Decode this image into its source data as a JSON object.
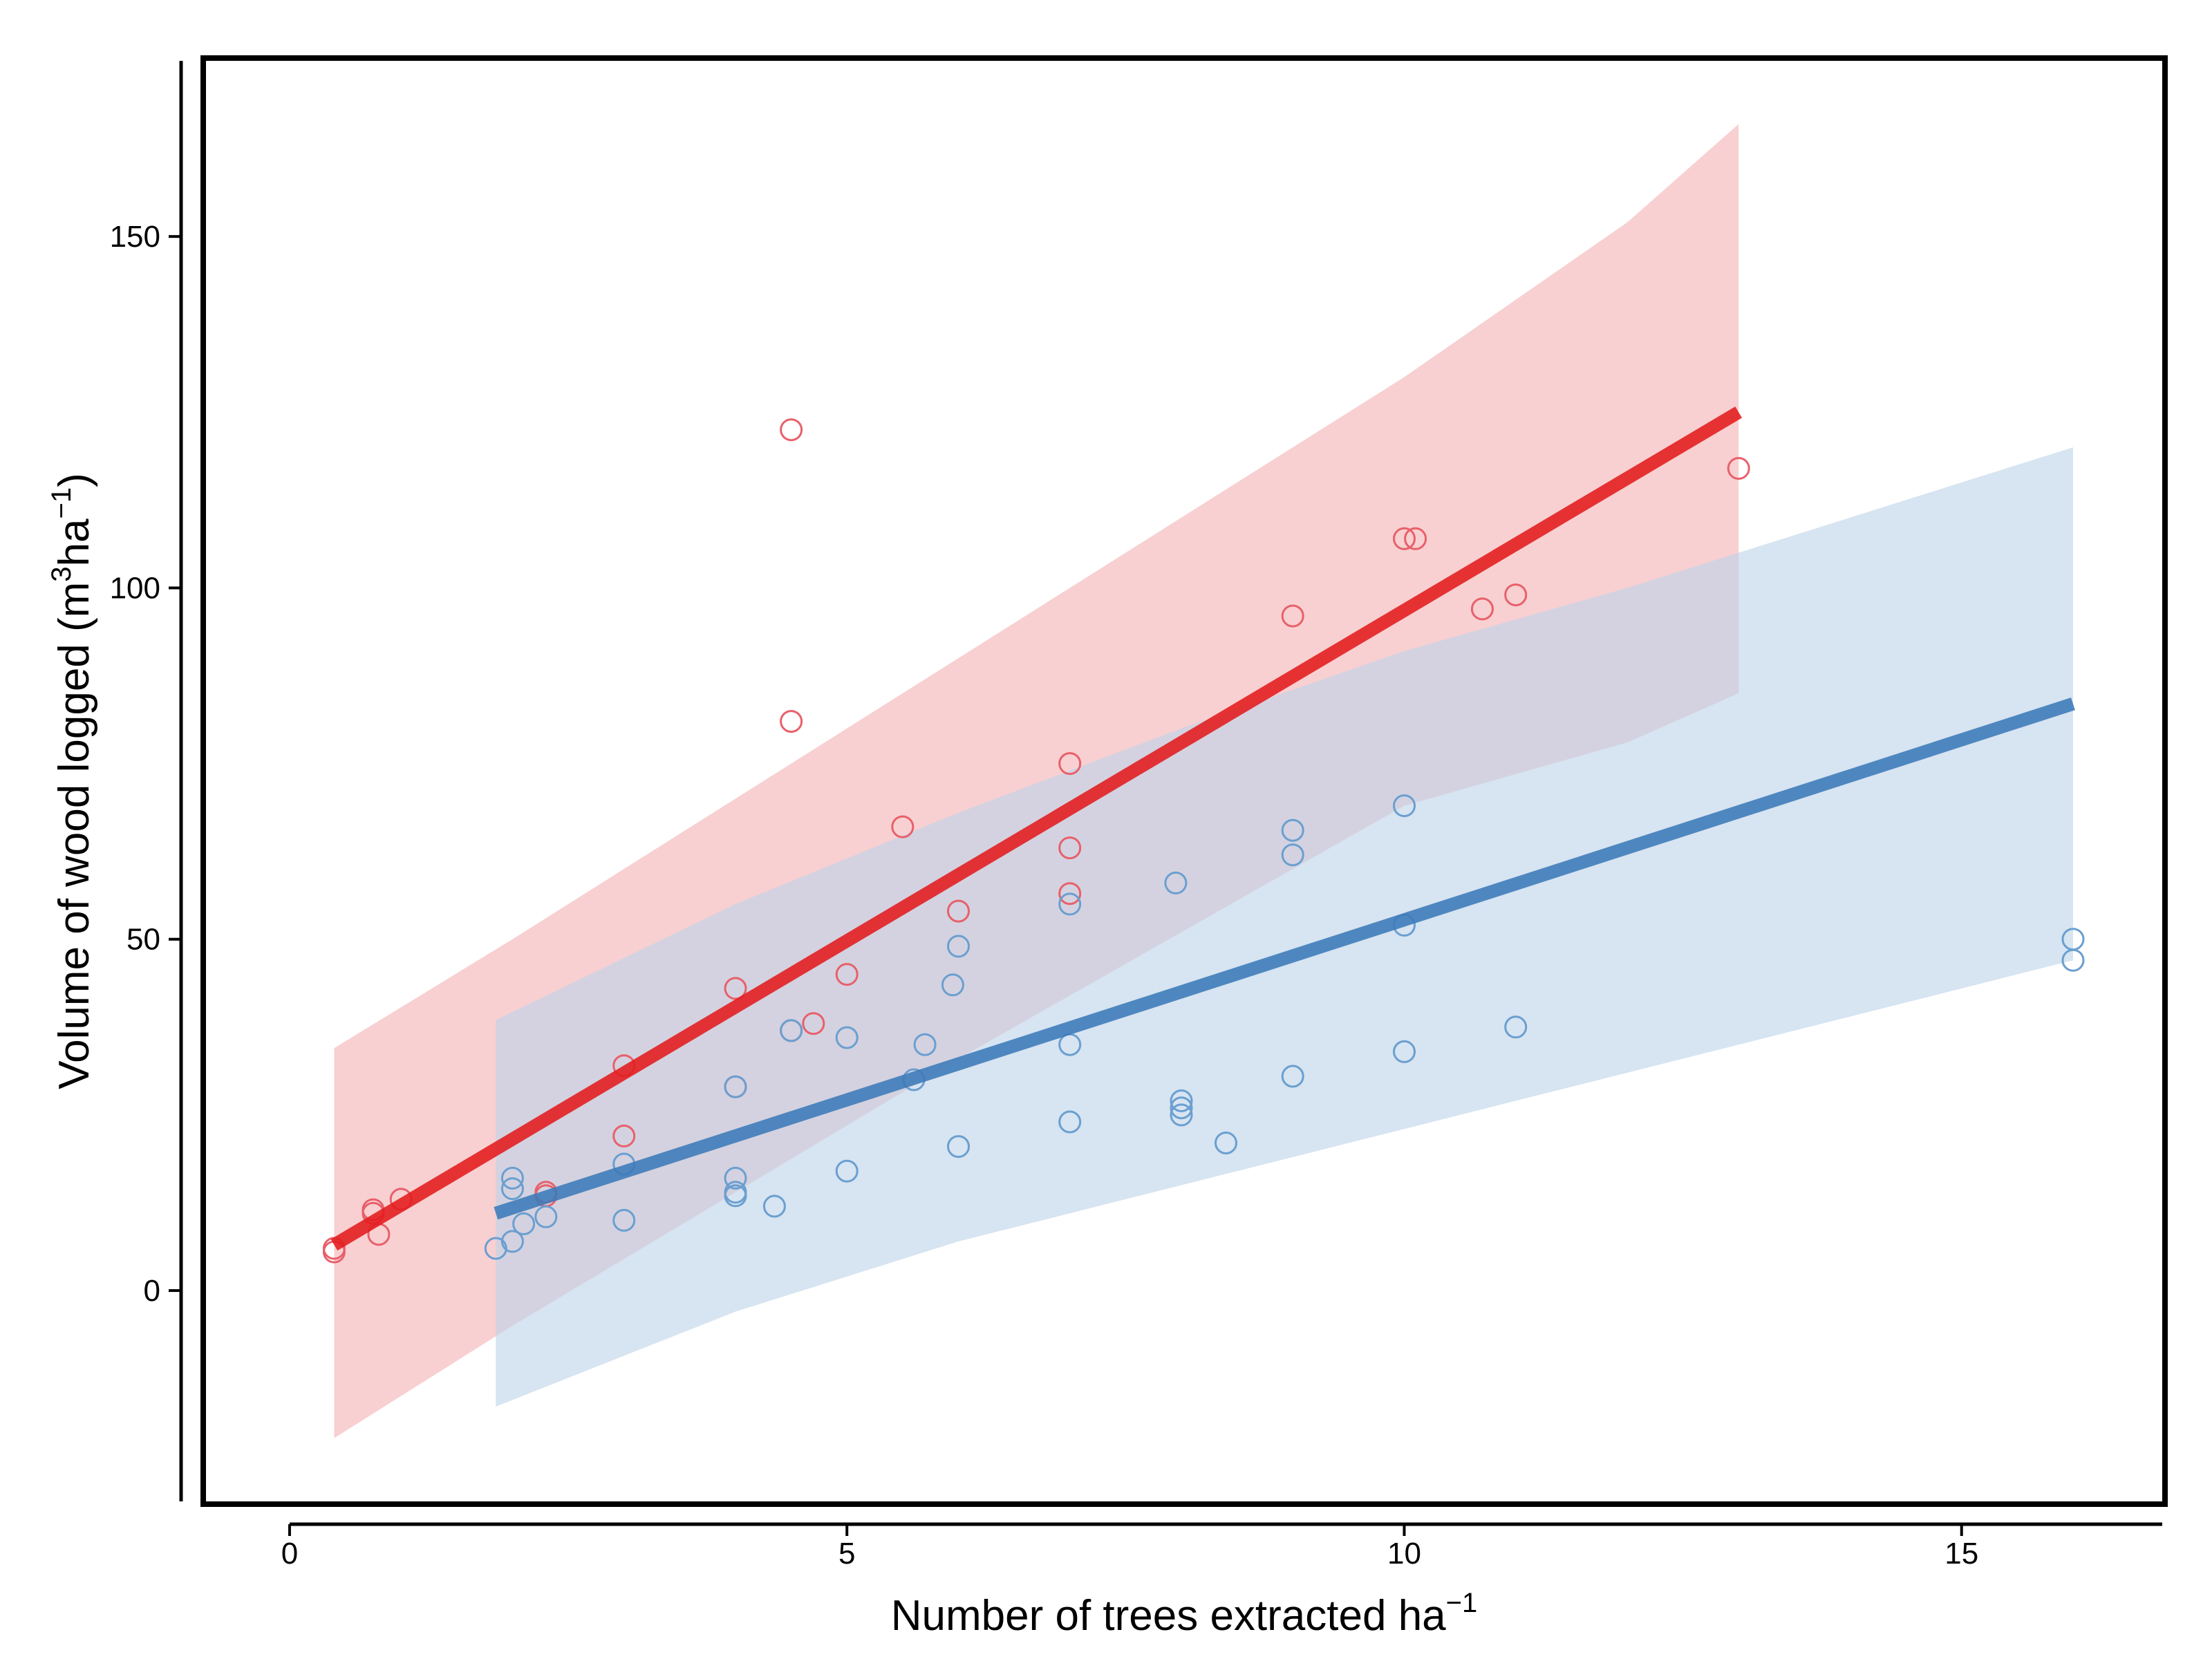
{
  "chart_data": {
    "type": "scatter",
    "title": "",
    "xlabel": {
      "base": "Number of trees extracted ha",
      "sup": "−1"
    },
    "ylabel": {
      "pre": "Volume of wood logged (m",
      "sup1": "3",
      "mid": "ha",
      "sup2": "−1",
      "post": ")"
    },
    "xlim": [
      -0.75,
      16.8
    ],
    "ylim": [
      -30,
      175
    ],
    "xticks": [
      0,
      5,
      10,
      15
    ],
    "yticks": [
      0,
      50,
      100,
      150
    ],
    "grid": false,
    "legend": "none",
    "colors": {
      "red_line": "#e31a1c",
      "red_band": "#f4b3b5",
      "red_points": "#e8606a",
      "blue_line": "#3b7ab8",
      "blue_band": "#bed4e8",
      "blue_points": "#6a9fd0"
    },
    "series": [
      {
        "color_key": "red",
        "points": [
          [
            0.4,
            5.5
          ],
          [
            0.4,
            6
          ],
          [
            0.75,
            11
          ],
          [
            0.75,
            11.5
          ],
          [
            0.8,
            8
          ],
          [
            1.0,
            13
          ],
          [
            2.3,
            13.5
          ],
          [
            2.3,
            14
          ],
          [
            3.0,
            32
          ],
          [
            3.0,
            22
          ],
          [
            4.0,
            43
          ],
          [
            4.0,
            29
          ],
          [
            4.5,
            122.5
          ],
          [
            4.5,
            81
          ],
          [
            4.5,
            37
          ],
          [
            4.7,
            38
          ],
          [
            5.0,
            45
          ],
          [
            5.5,
            66
          ],
          [
            6.0,
            54
          ],
          [
            7.0,
            75
          ],
          [
            7.0,
            63
          ],
          [
            7.0,
            56.5
          ],
          [
            9.0,
            96
          ],
          [
            10.0,
            107
          ],
          [
            10.1,
            107
          ],
          [
            10.7,
            97
          ],
          [
            11.0,
            99
          ],
          [
            13.0,
            117
          ]
        ],
        "fit": {
          "x": [
            0.4,
            13.0
          ],
          "y": [
            6.5,
            125
          ]
        },
        "band": {
          "x": [
            0.4,
            2.0,
            4.0,
            6.0,
            8.0,
            10.0,
            12.0,
            13.0
          ],
          "upper": [
            34.5,
            50,
            70,
            90,
            110,
            130,
            152,
            166
          ],
          "lower": [
            -21,
            -5,
            14,
            33,
            51,
            69,
            78,
            85
          ]
        }
      },
      {
        "color_key": "blue",
        "points": [
          [
            1.85,
            6
          ],
          [
            2.0,
            16
          ],
          [
            2.0,
            14.5
          ],
          [
            2.0,
            7
          ],
          [
            2.1,
            9.5
          ],
          [
            2.3,
            10.5
          ],
          [
            3.0,
            18
          ],
          [
            3.0,
            10
          ],
          [
            4.0,
            29
          ],
          [
            4.0,
            16
          ],
          [
            4.0,
            14
          ],
          [
            4.0,
            13.5
          ],
          [
            4.35,
            12
          ],
          [
            4.5,
            37
          ],
          [
            5.0,
            36
          ],
          [
            5.0,
            17
          ],
          [
            5.6,
            30
          ],
          [
            5.7,
            35
          ],
          [
            5.95,
            43.5
          ],
          [
            6.0,
            49
          ],
          [
            6.0,
            20.5
          ],
          [
            7.0,
            55
          ],
          [
            7.0,
            35
          ],
          [
            7.0,
            24
          ],
          [
            7.95,
            58
          ],
          [
            8.0,
            27
          ],
          [
            8.0,
            26
          ],
          [
            8.0,
            25
          ],
          [
            8.4,
            21
          ],
          [
            9.0,
            65.5
          ],
          [
            9.0,
            62
          ],
          [
            9.0,
            30.5
          ],
          [
            10.0,
            69
          ],
          [
            10.0,
            52
          ],
          [
            10.0,
            34
          ],
          [
            11.0,
            37.5
          ],
          [
            16.0,
            50
          ],
          [
            16.0,
            47
          ]
        ],
        "fit": {
          "x": [
            1.85,
            16.0
          ],
          "y": [
            11,
            83.5
          ]
        },
        "band": {
          "x": [
            1.85,
            4.0,
            6.0,
            8.0,
            10.0,
            12.0,
            14.0,
            16.0
          ],
          "upper": [
            38.5,
            55,
            68,
            80,
            91,
            100,
            110,
            120
          ],
          "lower": [
            -16.5,
            -3,
            7,
            15,
            23,
            31,
            39,
            47
          ]
        }
      }
    ]
  }
}
